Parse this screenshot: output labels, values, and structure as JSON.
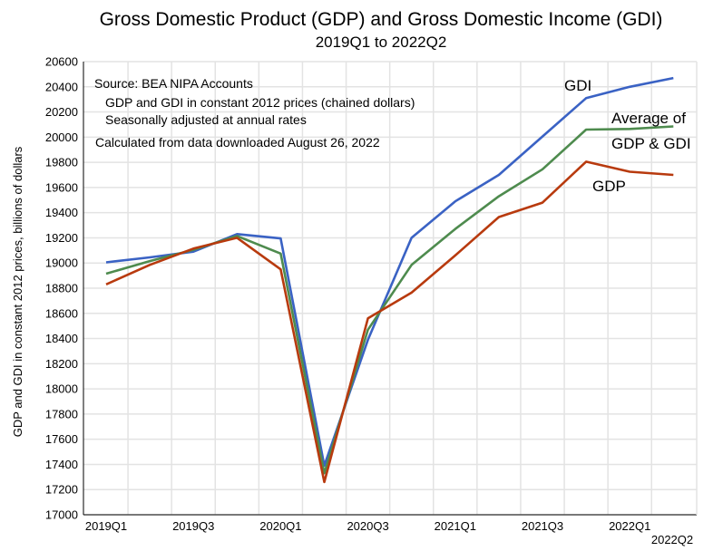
{
  "chart_data": {
    "type": "line",
    "title": "Gross Domestic Product (GDP) and Gross Domestic Income (GDI)",
    "subtitle": "2019Q1 to 2022Q2",
    "ylabel": "GDP and GDI in constant 2012 prices, billions of dollars",
    "xlabel": "",
    "ylim": [
      17000,
      20600
    ],
    "ytick_step": 200,
    "grid": true,
    "categories": [
      "2019Q1",
      "2019Q2",
      "2019Q3",
      "2019Q4",
      "2020Q1",
      "2020Q2",
      "2020Q3",
      "2020Q4",
      "2021Q1",
      "2021Q2",
      "2021Q3",
      "2021Q4",
      "2022Q1",
      "2022Q2"
    ],
    "xtick_labels": [
      {
        "index": 0,
        "label": "2019Q1"
      },
      {
        "index": 2,
        "label": "2019Q3"
      },
      {
        "index": 4,
        "label": "2020Q1"
      },
      {
        "index": 6,
        "label": "2020Q3"
      },
      {
        "index": 8,
        "label": "2021Q1"
      },
      {
        "index": 10,
        "label": "2021Q3"
      },
      {
        "index": 12,
        "label": "2022Q1"
      },
      {
        "index": 13,
        "label": "2022Q2"
      }
    ],
    "series": [
      {
        "name": "GDI",
        "color": "#3a62c4",
        "values": [
          19005,
          19045,
          19090,
          19230,
          19195,
          17390,
          18390,
          19200,
          19490,
          19700,
          20005,
          20310,
          20400,
          20470
        ]
      },
      {
        "name": "Average of GDP & GDI",
        "color": "#4e8b4e",
        "values": [
          18915,
          19015,
          19105,
          19215,
          19075,
          17330,
          18470,
          18985,
          19270,
          19530,
          19745,
          20060,
          20065,
          20085
        ]
      },
      {
        "name": "GDP",
        "color": "#b83a0e",
        "values": [
          18830,
          18985,
          19115,
          19200,
          18950,
          17260,
          18560,
          18765,
          19060,
          19365,
          19480,
          19805,
          19725,
          19700
        ]
      }
    ],
    "series_labels": {
      "gdi": "GDI",
      "avg_line1": "Average of",
      "avg_line2": "GDP & GDI",
      "gdp": "GDP"
    },
    "annotations": [
      "Source:  BEA NIPA Accounts",
      "GDP and GDI in constant 2012 prices (chained dollars)",
      "Seasonally adjusted at annual rates",
      "Calculated from data downloaded August 26, 2022"
    ]
  }
}
